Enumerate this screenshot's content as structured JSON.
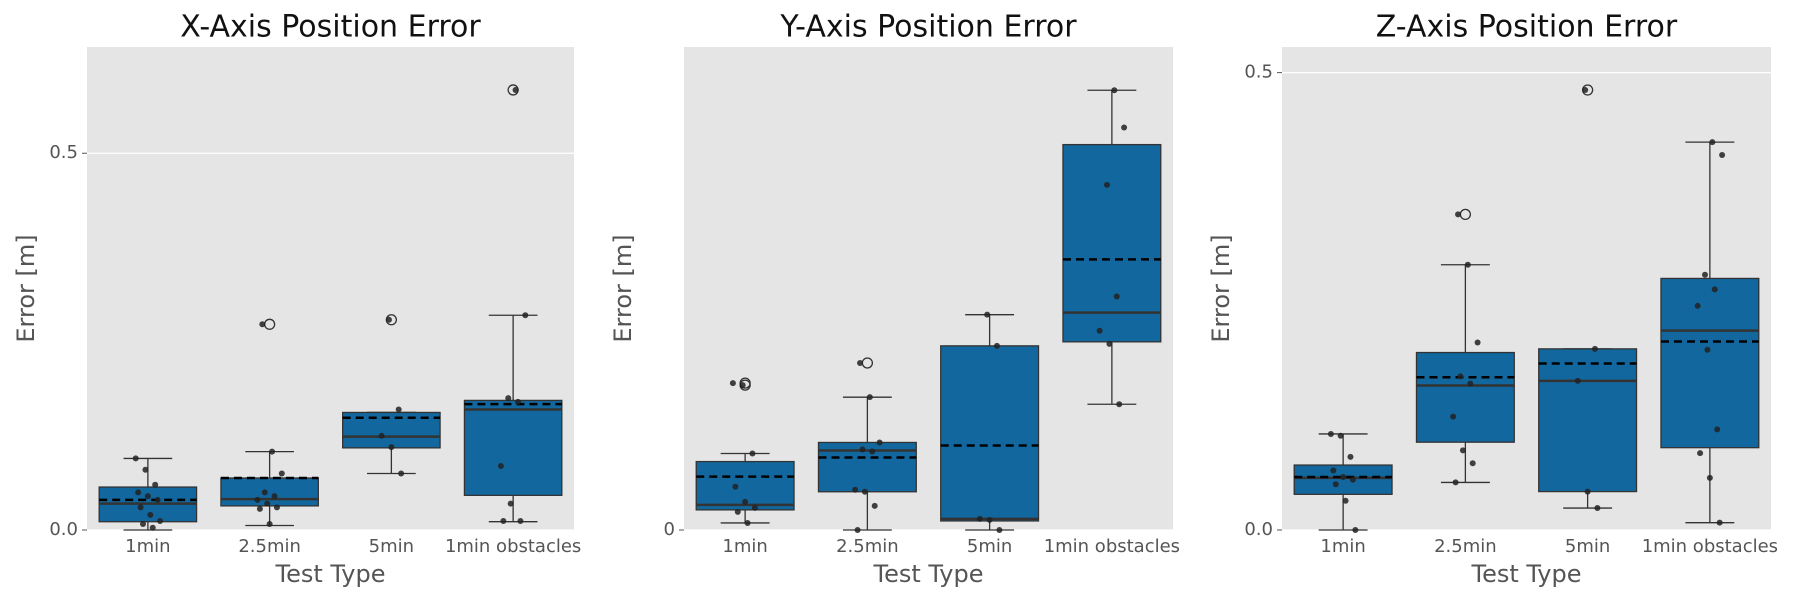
{
  "chart_data": [
    {
      "type": "box",
      "title": "X-Axis Position Error",
      "xlabel": "Test Type",
      "ylabel": "Error [m]",
      "categories": [
        "1min",
        "2.5min",
        "5min",
        "1min obstacles"
      ],
      "color": "#12689e",
      "grid": true,
      "ylim": [
        0,
        0.641
      ],
      "yticks": [
        {
          "value": 0,
          "label": "0.0"
        },
        {
          "value": 0.5,
          "label": "0.5"
        }
      ],
      "boxes": [
        {
          "q1": 0.011,
          "median": 0.035,
          "q3": 0.057,
          "mean": 0.04,
          "whisker_low": 0.0,
          "whisker_high": 0.095,
          "outliers": [],
          "points": [
            0.095,
            0.08,
            0.06,
            0.05,
            0.045,
            0.04,
            0.03,
            0.02,
            0.012,
            0.008,
            0.003
          ]
        },
        {
          "q1": 0.032,
          "median": 0.041,
          "q3": 0.069,
          "mean": 0.069,
          "whisker_low": 0.006,
          "whisker_high": 0.104,
          "outliers": [
            0.273
          ],
          "points": [
            0.273,
            0.104,
            0.075,
            0.05,
            0.045,
            0.04,
            0.035,
            0.03,
            0.028,
            0.008
          ]
        },
        {
          "q1": 0.109,
          "median": 0.124,
          "q3": 0.156,
          "mean": 0.149,
          "whisker_low": 0.075,
          "whisker_high": 0.156,
          "outliers": [
            0.279
          ],
          "points": [
            0.279,
            0.16,
            0.125,
            0.11,
            0.075
          ]
        },
        {
          "q1": 0.046,
          "median": 0.16,
          "q3": 0.172,
          "mean": 0.167,
          "whisker_low": 0.011,
          "whisker_high": 0.285,
          "outliers": [
            0.584
          ],
          "points": [
            0.584,
            0.285,
            0.175,
            0.17,
            0.085,
            0.035,
            0.012,
            0.012
          ]
        }
      ]
    },
    {
      "type": "box",
      "title": "Y-Axis Position Error",
      "xlabel": "Test Type",
      "ylabel": "Error [m]",
      "categories": [
        "1min",
        "2.5min",
        "5min",
        "1min obstacles"
      ],
      "color": "#12689e",
      "grid": true,
      "ylim": [
        0,
        0.48
      ],
      "yticks": [
        0
      ],
      "boxes": [
        {
          "q1": 0.02,
          "median": 0.025,
          "q3": 0.068,
          "mean": 0.053,
          "whisker_low": 0.007,
          "whisker_high": 0.076,
          "outliers": [
            0.146,
            0.144
          ],
          "points": [
            0.146,
            0.144,
            0.076,
            0.043,
            0.028,
            0.022,
            0.018,
            0.007
          ]
        },
        {
          "q1": 0.038,
          "median": 0.079,
          "q3": 0.087,
          "mean": 0.072,
          "whisker_low": 0.0,
          "whisker_high": 0.132,
          "outliers": [
            0.166
          ],
          "points": [
            0.166,
            0.132,
            0.087,
            0.08,
            0.078,
            0.04,
            0.038,
            0.024,
            0.0
          ]
        },
        {
          "q1": 0.009,
          "median": 0.011,
          "q3": 0.183,
          "mean": 0.084,
          "whisker_low": 0.0,
          "whisker_high": 0.214,
          "outliers": [],
          "points": [
            0.214,
            0.183,
            0.011,
            0.01,
            0.0
          ]
        },
        {
          "q1": 0.187,
          "median": 0.216,
          "q3": 0.383,
          "mean": 0.269,
          "whisker_low": 0.125,
          "whisker_high": 0.437,
          "outliers": [],
          "points": [
            0.437,
            0.4,
            0.343,
            0.232,
            0.198,
            0.185,
            0.125
          ]
        }
      ]
    },
    {
      "type": "box",
      "title": "Z-Axis Position Error",
      "xlabel": "Test Type",
      "ylabel": "Error [m]",
      "categories": [
        "1min",
        "2.5min",
        "5min",
        "1min obstacles"
      ],
      "color": "#12689e",
      "grid": true,
      "ylim": [
        0,
        0.528
      ],
      "yticks": [
        {
          "value": 0,
          "label": "0.0"
        },
        {
          "value": 0.5,
          "label": "0.5"
        }
      ],
      "boxes": [
        {
          "q1": 0.039,
          "median": 0.057,
          "q3": 0.071,
          "mean": 0.058,
          "whisker_low": 0.0,
          "whisker_high": 0.105,
          "outliers": [],
          "points": [
            0.105,
            0.103,
            0.08,
            0.065,
            0.058,
            0.055,
            0.05,
            0.032,
            0.0
          ]
        },
        {
          "q1": 0.096,
          "median": 0.158,
          "q3": 0.194,
          "mean": 0.167,
          "whisker_low": 0.052,
          "whisker_high": 0.29,
          "outliers": [
            0.345
          ],
          "points": [
            0.345,
            0.29,
            0.205,
            0.168,
            0.16,
            0.124,
            0.087,
            0.073,
            0.052
          ]
        },
        {
          "q1": 0.042,
          "median": 0.163,
          "q3": 0.198,
          "mean": 0.182,
          "whisker_low": 0.024,
          "whisker_high": 0.198,
          "outliers": [
            0.481
          ],
          "points": [
            0.481,
            0.198,
            0.163,
            0.042,
            0.024
          ]
        },
        {
          "q1": 0.09,
          "median": 0.218,
          "q3": 0.275,
          "mean": 0.206,
          "whisker_low": 0.008,
          "whisker_high": 0.424,
          "outliers": [],
          "points": [
            0.424,
            0.41,
            0.279,
            0.263,
            0.245,
            0.197,
            0.11,
            0.084,
            0.057,
            0.008
          ]
        }
      ]
    }
  ]
}
